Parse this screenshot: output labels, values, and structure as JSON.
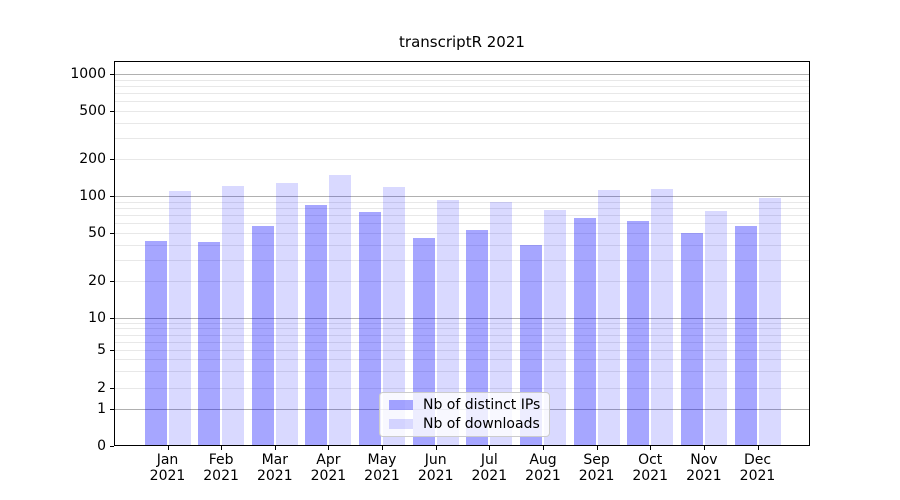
{
  "chart_data": {
    "type": "bar",
    "title": "transcriptR 2021",
    "months": [
      "Jan",
      "Feb",
      "Mar",
      "Apr",
      "May",
      "Jun",
      "Jul",
      "Aug",
      "Sep",
      "Oct",
      "Nov",
      "Dec"
    ],
    "year": "2021",
    "categories": [
      "Jan 2021",
      "Feb 2021",
      "Mar 2021",
      "Apr 2021",
      "May 2021",
      "Jun 2021",
      "Jul 2021",
      "Aug 2021",
      "Sep 2021",
      "Oct 2021",
      "Nov 2021",
      "Dec 2021"
    ],
    "series": [
      {
        "name": "Nb of distinct IPs",
        "color": "rgba(0,0,255,0.35)",
        "values": [
          43,
          42,
          57,
          84,
          74,
          45,
          53,
          40,
          66,
          62,
          50,
          57
        ]
      },
      {
        "name": "Nb of downloads",
        "color": "rgba(0,0,255,0.15)",
        "values": [
          110,
          121,
          128,
          150,
          119,
          93,
          90,
          77,
          112,
          114,
          76,
          97
        ]
      }
    ],
    "y_ticks": [
      1000,
      500,
      200,
      100,
      50,
      20,
      10,
      5,
      2,
      1,
      0
    ],
    "yscale": "log-like (symlog)",
    "ylim": [
      0,
      1280
    ],
    "xlabel": "",
    "ylabel": "",
    "grid": "horizontal major+minor",
    "legend_position": "lower center",
    "colors": {
      "bar_ips": "#a6a6ff",
      "bar_downloads": "#d9d9ff",
      "major_grid": "#b0b0b0",
      "minor_grid": "#e8e8e8",
      "spine": "#000000",
      "background": "#ffffff"
    }
  }
}
